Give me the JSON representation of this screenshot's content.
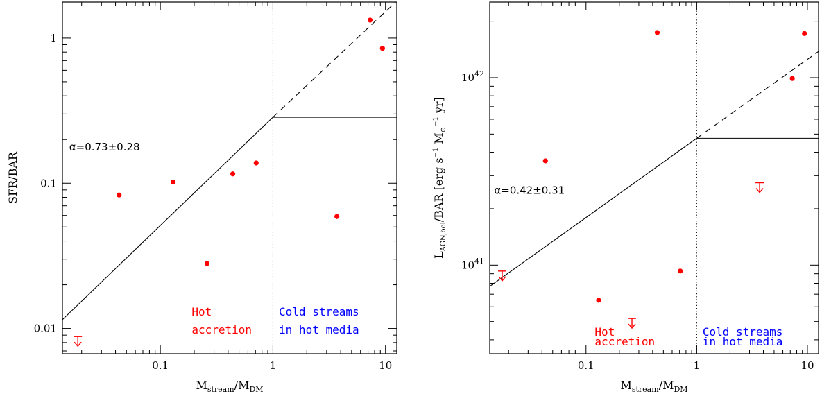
{
  "chart_data": [
    {
      "type": "scatter",
      "xscale": "log",
      "yscale": "log",
      "xlim": [
        0.0135,
        12.6
      ],
      "ylim": [
        0.0067,
        1.77
      ],
      "xlabel": "M",
      "xlabel_sub1": "stream",
      "xlabel_mid": "/M",
      "xlabel_sub2": "DM",
      "ylabel": "SFR/BAR",
      "xticks": [
        {
          "v": 0.1,
          "label": "0.1"
        },
        {
          "v": 1,
          "label": "1"
        },
        {
          "v": 10,
          "label": "10"
        }
      ],
      "yticks": [
        {
          "v": 0.01,
          "label": "0.01"
        },
        {
          "v": 0.1,
          "label": "0.1"
        },
        {
          "v": 1,
          "label": "1"
        }
      ],
      "points": [
        {
          "x": 0.043,
          "y": 0.083
        },
        {
          "x": 0.13,
          "y": 0.102
        },
        {
          "x": 0.26,
          "y": 0.028
        },
        {
          "x": 0.44,
          "y": 0.116
        },
        {
          "x": 0.71,
          "y": 0.138
        },
        {
          "x": 3.7,
          "y": 0.059
        },
        {
          "x": 7.3,
          "y": 1.33
        },
        {
          "x": 9.4,
          "y": 0.85
        }
      ],
      "upper_limits": [
        {
          "x": 0.0185,
          "y": 0.0088
        }
      ],
      "fit_line": {
        "x0": 0.0135,
        "y0": 0.0115,
        "x1": 1,
        "y1": 0.285
      },
      "dashed_extension": {
        "x0": 1,
        "y0": 0.285,
        "x1": 12.6,
        "y1": 1.8
      },
      "plateau": {
        "x0": 1,
        "x1": 12.6,
        "y": 0.285
      },
      "divider_x": 1,
      "annotation": "α=0.73±0.28",
      "annotation_pos": {
        "x": 0.0155,
        "y": 0.168
      },
      "region_left": [
        "Hot",
        "accretion"
      ],
      "region_right": [
        "Cold streams",
        "in hot media"
      ],
      "region_y": [
        0.0123,
        0.0092
      ],
      "region_left_x": 0.19,
      "region_right_x": 1.13
    },
    {
      "type": "scatter",
      "xscale": "log",
      "yscale": "log",
      "xlim": [
        0.0135,
        12.6
      ],
      "ylim": [
        3.37e+40,
        2.53e+42
      ],
      "xlabel": "M",
      "xlabel_sub1": "stream",
      "xlabel_mid": "/M",
      "xlabel_sub2": "DM",
      "ylabel": "L",
      "ylabel_sub": "AGN,bol",
      "ylabel_rest": "/BAR [erg s",
      "ylabel_sup": "−1",
      "ylabel_rest2": " M",
      "ylabel_sun": "⊙",
      "ylabel_sup2": "−1",
      "ylabel_rest3": " yr]",
      "xticks": [
        {
          "v": 0.1,
          "label": "0.1"
        },
        {
          "v": 1,
          "label": "1"
        },
        {
          "v": 10,
          "label": "10"
        }
      ],
      "yticks": [
        {
          "v": 1e+41,
          "base": "10",
          "exp": "41"
        },
        {
          "v": 1e+42,
          "base": "10",
          "exp": "42"
        }
      ],
      "points": [
        {
          "x": 0.043,
          "y": 3.6e+41
        },
        {
          "x": 0.13,
          "y": 6.5e+40
        },
        {
          "x": 0.44,
          "y": 1.74e+42
        },
        {
          "x": 0.71,
          "y": 9.3e+40
        },
        {
          "x": 7.3,
          "y": 9.9e+41
        },
        {
          "x": 9.4,
          "y": 1.72e+42
        }
      ],
      "upper_limits": [
        {
          "x": 0.0175,
          "y": 9.3e+40
        },
        {
          "x": 0.26,
          "y": 5.2e+40
        },
        {
          "x": 3.7,
          "y": 2.75e+41
        }
      ],
      "fit_line": {
        "x0": 0.0135,
        "y0": 7.7e+40,
        "x1": 1,
        "y1": 4.75e+41
      },
      "dashed_extension": {
        "x0": 1,
        "y0": 4.75e+41,
        "x1": 12.6,
        "y1": 1.38e+42
      },
      "plateau": {
        "x0": 1,
        "x1": 12.6,
        "y": 4.75e+41
      },
      "divider_x": 1,
      "annotation": "α=0.42±0.31",
      "annotation_pos": {
        "x": 0.0148,
        "y": 2.4e+41
      },
      "region_left": [
        "Hot",
        "accretion"
      ],
      "region_right": [
        "Cold streams",
        "in hot media"
      ],
      "region_y": [
        4.2e+40,
        3.73e+40
      ],
      "region_left_x": 0.12,
      "region_right_x": 1.13
    }
  ],
  "colors": {
    "points": "#ff0000",
    "hot_label": "#ff0000",
    "cold_label": "#0000ff",
    "axes": "#000000"
  }
}
